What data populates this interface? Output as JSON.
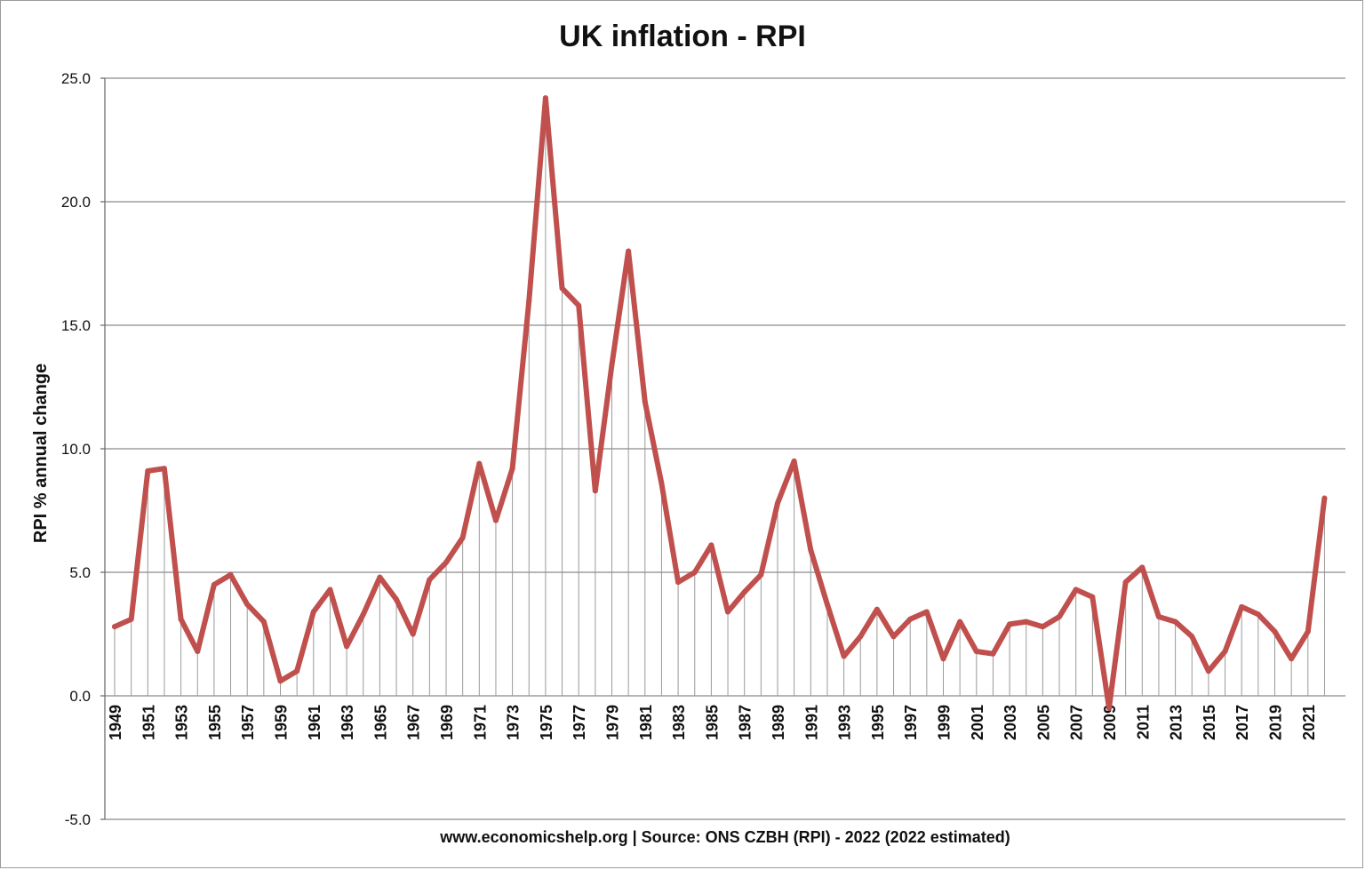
{
  "chart_data": {
    "type": "line",
    "title": "UK inflation - RPI",
    "xlabel": "",
    "ylabel": "RPI % annual change",
    "source": "www.economicshelp.org | Source: ONS CZBH (RPI) - 2022 (2022 estimated)",
    "ylim": [
      -5,
      25
    ],
    "yticks": [
      "25.0",
      "20.0",
      "15.0",
      "10.0",
      "5.0",
      "0.0",
      "-5.0"
    ],
    "xtick_labels": [
      "1949",
      "1951",
      "1953",
      "1955",
      "1957",
      "1959",
      "1961",
      "1963",
      "1965",
      "1967",
      "1969",
      "1971",
      "1973",
      "1975",
      "1977",
      "1979",
      "1981",
      "1983",
      "1985",
      "1987",
      "1989",
      "1991",
      "1993",
      "1995",
      "1997",
      "1999",
      "2001",
      "2003",
      "2005",
      "2007",
      "2009",
      "2011",
      "2013",
      "2015",
      "2017",
      "2019",
      "2021"
    ],
    "grid": true,
    "series": [
      {
        "name": "RPI % annual change",
        "color": "#c0504d",
        "x": [
          1949,
          1950,
          1951,
          1952,
          1953,
          1954,
          1955,
          1956,
          1957,
          1958,
          1959,
          1960,
          1961,
          1962,
          1963,
          1964,
          1965,
          1966,
          1967,
          1968,
          1969,
          1970,
          1971,
          1972,
          1973,
          1974,
          1975,
          1976,
          1977,
          1978,
          1979,
          1980,
          1981,
          1982,
          1983,
          1984,
          1985,
          1986,
          1987,
          1988,
          1989,
          1990,
          1991,
          1992,
          1993,
          1994,
          1995,
          1996,
          1997,
          1998,
          1999,
          2000,
          2001,
          2002,
          2003,
          2004,
          2005,
          2006,
          2007,
          2008,
          2009,
          2010,
          2011,
          2012,
          2013,
          2014,
          2015,
          2016,
          2017,
          2018,
          2019,
          2020,
          2021,
          2022
        ],
        "values": [
          2.8,
          3.1,
          9.1,
          9.2,
          3.1,
          1.8,
          4.5,
          4.9,
          3.7,
          3.0,
          0.6,
          1.0,
          3.4,
          4.3,
          2.0,
          3.3,
          4.8,
          3.9,
          2.5,
          4.7,
          5.4,
          6.4,
          9.4,
          7.1,
          9.2,
          16.0,
          24.2,
          16.5,
          15.8,
          8.3,
          13.4,
          18.0,
          11.9,
          8.6,
          4.6,
          5.0,
          6.1,
          3.4,
          4.2,
          4.9,
          7.8,
          9.5,
          5.9,
          3.7,
          1.6,
          2.4,
          3.5,
          2.4,
          3.1,
          3.4,
          1.5,
          3.0,
          1.8,
          1.7,
          2.9,
          3.0,
          2.8,
          3.2,
          4.3,
          4.0,
          -0.5,
          4.6,
          5.2,
          3.2,
          3.0,
          2.4,
          1.0,
          1.8,
          3.6,
          3.3,
          2.6,
          1.5,
          2.6,
          8.0
        ]
      }
    ]
  }
}
